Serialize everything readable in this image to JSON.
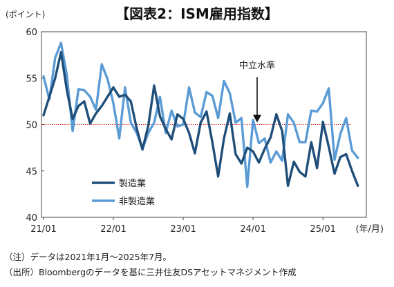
{
  "chart_data": {
    "type": "line",
    "title": "【図表2：ISM雇用指数】",
    "ylabel": "(ポイント)",
    "x_unit": "(年/月)",
    "ylim": [
      40,
      60
    ],
    "y_ticks": [
      40,
      45,
      50,
      55,
      60
    ],
    "x_start": "2021-01",
    "x_tick_labels": [
      "21/01",
      "22/01",
      "23/01",
      "24/01",
      "25/01"
    ],
    "reference_line": {
      "value": 50,
      "color": "#e03030"
    },
    "annotation": "中立水準",
    "legend_position": "bottom-left",
    "series": [
      {
        "name": "製造業",
        "color": "#1f4e79",
        "values": [
          51.0,
          53.0,
          55.0,
          57.8,
          53.7,
          50.6,
          52.0,
          52.5,
          50.1,
          51.2,
          52.0,
          53.0,
          54.0,
          53.0,
          53.2,
          52.5,
          49.6,
          47.3,
          49.9,
          54.2,
          50.9,
          49.5,
          48.4,
          51.1,
          50.6,
          49.1,
          46.9,
          50.2,
          51.4,
          48.1,
          44.4,
          48.5,
          51.2,
          46.8,
          45.8,
          47.5,
          47.1,
          45.9,
          47.4,
          48.6,
          51.1,
          49.3,
          43.4,
          46.0,
          44.9,
          44.4,
          48.1,
          45.3,
          50.3,
          47.6,
          44.7,
          46.5,
          46.8,
          45.0,
          43.4
        ]
      },
      {
        "name": "非製造業",
        "color": "#5b9bd5",
        "values": [
          55.2,
          52.7,
          57.2,
          58.8,
          55.3,
          49.3,
          53.8,
          53.7,
          53.0,
          51.6,
          56.5,
          54.9,
          52.3,
          48.5,
          54.0,
          50.2,
          49.1,
          47.4,
          49.1,
          50.2,
          53.0,
          49.1,
          51.5,
          49.8,
          50.0,
          54.0,
          51.3,
          50.8,
          53.5,
          53.1,
          50.7,
          54.7,
          53.4,
          50.2,
          50.7,
          43.3,
          50.5,
          48.0,
          48.5,
          45.9,
          47.1,
          46.1,
          51.1,
          50.2,
          48.1,
          48.1,
          51.5,
          51.4,
          52.3,
          53.9,
          46.2,
          49.0,
          50.7,
          47.2,
          46.4
        ]
      }
    ]
  },
  "notes": [
    "（注）データは2021年1月～2025年7月。",
    "（出所）Bloombergのデータを基に三井住友DSアセットマネジメント作成"
  ]
}
